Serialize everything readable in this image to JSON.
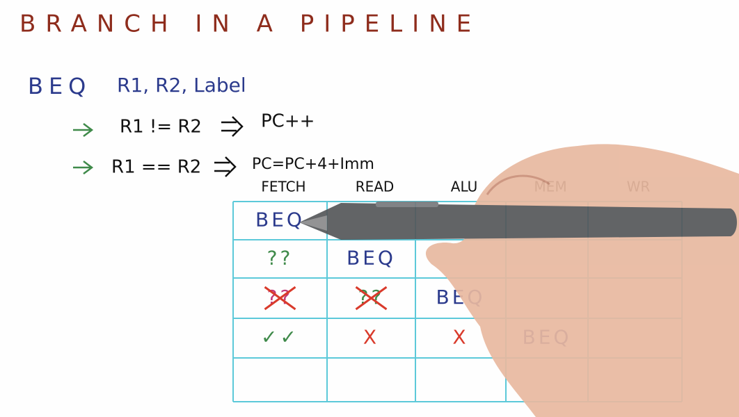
{
  "header": {
    "title": "BRANCH IN A PIPELINE"
  },
  "instruction": {
    "text": "BEQ",
    "operands": "R1, R2, Label"
  },
  "cases": [
    {
      "condition": "R1 != R2",
      "result": "PC++"
    },
    {
      "condition": "R1 == R2",
      "result": "PC=PC+4+Imm"
    }
  ],
  "table": {
    "columns": [
      "FETCH",
      "READ",
      "ALU",
      "MEM",
      "WR"
    ],
    "rows": [
      [
        {
          "text": "BEQ",
          "color": "#2b3a8c"
        },
        null,
        null,
        null,
        null
      ],
      [
        {
          "text": "??",
          "color": "#3f8a4a"
        },
        {
          "text": "BEQ",
          "color": "#2b3a8c"
        },
        null,
        null,
        null
      ],
      [
        {
          "text": "??",
          "color": "#c23a7a",
          "crossed": true
        },
        {
          "text": "??",
          "color": "#3f8a4a",
          "crossed": true
        },
        {
          "text": "BEQ",
          "color": "#2b3a8c"
        },
        null,
        null
      ],
      [
        {
          "text": "✓✓",
          "color": "#3f8a4a"
        },
        {
          "text": "X",
          "color": "#d93a2b"
        },
        {
          "text": "X",
          "color": "#d93a2b"
        },
        {
          "text": "BEQ",
          "color": "#2b3a8c"
        },
        null
      ],
      [
        null,
        null,
        null,
        null,
        null
      ]
    ]
  }
}
